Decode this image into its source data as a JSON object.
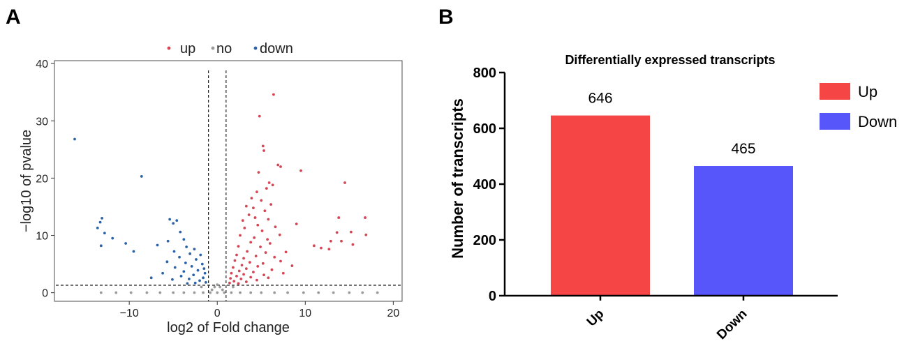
{
  "panels": {
    "a_label": "A",
    "b_label": "B"
  },
  "chart_data": [
    {
      "type": "scatter",
      "panel": "A",
      "title": "",
      "xlabel": "log2 of Fold change",
      "ylabel": "−log10 of pvalue",
      "xlim": [
        -18.5,
        21
      ],
      "ylim": [
        -1.5,
        40.5
      ],
      "xticks": [
        -10,
        0,
        10,
        20
      ],
      "xtick_labels": [
        "−10",
        "0",
        "10",
        "20"
      ],
      "yticks": [
        0,
        10,
        20,
        30,
        40
      ],
      "ytick_labels": [
        "0",
        "10",
        "20",
        "30",
        "40"
      ],
      "legend": {
        "placement": "top",
        "entries": [
          {
            "name": "up",
            "color": "#d64554"
          },
          {
            "name": "no",
            "color": "#9a9a9a"
          },
          {
            "name": "down",
            "color": "#2c62a8"
          }
        ]
      },
      "thresholds": {
        "fold_change_lines": [
          -1,
          1
        ],
        "pvalue_line": 1.3
      },
      "grid": false,
      "series": [
        {
          "name": "up",
          "color": "#d64554",
          "points": [
            [
              6.4,
              34.6
            ],
            [
              4.8,
              30.8
            ],
            [
              5.2,
              25.6
            ],
            [
              5.3,
              24.8
            ],
            [
              6.9,
              22.3
            ],
            [
              7.2,
              22.0
            ],
            [
              9.5,
              21.3
            ],
            [
              4.7,
              21.0
            ],
            [
              14.5,
              19.2
            ],
            [
              5.9,
              19.2
            ],
            [
              6.3,
              18.8
            ],
            [
              5.6,
              18.2
            ],
            [
              4.5,
              17.6
            ],
            [
              3.9,
              16.5
            ],
            [
              5.0,
              16.1
            ],
            [
              6.1,
              15.4
            ],
            [
              3.3,
              15.1
            ],
            [
              4.1,
              14.8
            ],
            [
              5.4,
              14.3
            ],
            [
              3.6,
              13.6
            ],
            [
              4.3,
              13.1
            ],
            [
              5.8,
              12.8
            ],
            [
              2.9,
              12.6
            ],
            [
              13.8,
              13.1
            ],
            [
              16.8,
              13.1
            ],
            [
              9.0,
              12.0
            ],
            [
              4.6,
              11.8
            ],
            [
              6.6,
              11.5
            ],
            [
              3.1,
              11.3
            ],
            [
              5.1,
              10.8
            ],
            [
              13.6,
              10.5
            ],
            [
              15.2,
              10.6
            ],
            [
              16.9,
              10.1
            ],
            [
              7.1,
              10.1
            ],
            [
              2.6,
              10.0
            ],
            [
              4.2,
              9.6
            ],
            [
              5.7,
              9.3
            ],
            [
              12.9,
              9.0
            ],
            [
              14.1,
              9.0
            ],
            [
              3.8,
              8.8
            ],
            [
              6.0,
              8.6
            ],
            [
              11.0,
              8.2
            ],
            [
              15.4,
              8.4
            ],
            [
              2.4,
              8.1
            ],
            [
              4.9,
              8.0
            ],
            [
              11.8,
              7.8
            ],
            [
              12.7,
              7.6
            ],
            [
              7.8,
              7.1
            ],
            [
              3.4,
              7.2
            ],
            [
              5.5,
              7.0
            ],
            [
              2.2,
              6.6
            ],
            [
              4.4,
              6.4
            ],
            [
              6.5,
              6.2
            ],
            [
              3.0,
              6.0
            ],
            [
              7.2,
              5.5
            ],
            [
              2.0,
              5.6
            ],
            [
              3.7,
              5.3
            ],
            [
              5.2,
              5.1
            ],
            [
              2.8,
              4.8
            ],
            [
              4.6,
              4.6
            ],
            [
              1.8,
              4.4
            ],
            [
              8.5,
              4.7
            ],
            [
              3.3,
              4.2
            ],
            [
              6.2,
              4.0
            ],
            [
              2.5,
              3.8
            ],
            [
              4.1,
              3.6
            ],
            [
              1.6,
              3.4
            ],
            [
              3.0,
              3.2
            ],
            [
              5.3,
              3.1
            ],
            [
              2.2,
              2.9
            ],
            [
              3.8,
              2.7
            ],
            [
              1.5,
              2.5
            ],
            [
              2.7,
              2.4
            ],
            [
              4.5,
              2.2
            ],
            [
              1.9,
              2.0
            ],
            [
              3.3,
              1.9
            ],
            [
              1.4,
              1.7
            ],
            [
              2.4,
              1.6
            ],
            [
              5.8,
              2.6
            ],
            [
              7.5,
              3.4
            ]
          ]
        },
        {
          "name": "no",
          "color": "#9a9a9a",
          "points": [
            [
              -13.2,
              0
            ],
            [
              -11.5,
              0
            ],
            [
              -9.8,
              0
            ],
            [
              -8.0,
              0
            ],
            [
              -6.5,
              0
            ],
            [
              -5.0,
              0
            ],
            [
              -3.8,
              0
            ],
            [
              -2.6,
              0
            ],
            [
              -1.6,
              0
            ],
            [
              -0.8,
              0
            ],
            [
              0,
              0
            ],
            [
              0.8,
              0
            ],
            [
              1.6,
              0
            ],
            [
              2.6,
              0
            ],
            [
              3.8,
              0
            ],
            [
              5.0,
              0
            ],
            [
              6.5,
              0
            ],
            [
              8.0,
              0
            ],
            [
              9.8,
              0
            ],
            [
              11.5,
              0
            ],
            [
              13.2,
              0
            ],
            [
              15.0,
              0
            ],
            [
              16.5,
              0
            ],
            [
              18.2,
              0
            ],
            [
              -0.6,
              0.5
            ],
            [
              0.6,
              0.5
            ],
            [
              -0.3,
              1.0
            ],
            [
              0.3,
              1.0
            ],
            [
              0,
              1.4
            ],
            [
              -1.8,
              1.0
            ],
            [
              1.8,
              1.0
            ]
          ]
        },
        {
          "name": "down",
          "color": "#2c62a8",
          "points": [
            [
              -16.2,
              26.8
            ],
            [
              -8.6,
              20.3
            ],
            [
              -13.1,
              13.0
            ],
            [
              -13.3,
              12.3
            ],
            [
              -5.4,
              12.8
            ],
            [
              -4.6,
              12.6
            ],
            [
              -5.0,
              12.1
            ],
            [
              -13.6,
              11.3
            ],
            [
              -12.8,
              10.4
            ],
            [
              -4.2,
              10.6
            ],
            [
              -11.9,
              9.5
            ],
            [
              -3.8,
              9.3
            ],
            [
              -13.2,
              8.2
            ],
            [
              -10.4,
              8.6
            ],
            [
              -9.5,
              7.2
            ],
            [
              -6.8,
              8.3
            ],
            [
              -5.6,
              9.0
            ],
            [
              -3.5,
              8.0
            ],
            [
              -2.6,
              7.6
            ],
            [
              -4.9,
              7.2
            ],
            [
              -3.1,
              6.8
            ],
            [
              -1.9,
              6.6
            ],
            [
              -4.3,
              6.2
            ],
            [
              -2.4,
              5.8
            ],
            [
              -5.7,
              5.4
            ],
            [
              -3.6,
              5.2
            ],
            [
              -1.7,
              5.0
            ],
            [
              -2.9,
              4.6
            ],
            [
              -4.8,
              4.4
            ],
            [
              -1.5,
              4.2
            ],
            [
              -2.2,
              3.9
            ],
            [
              -3.8,
              3.7
            ],
            [
              -1.4,
              3.4
            ],
            [
              -2.7,
              3.1
            ],
            [
              -4.1,
              2.9
            ],
            [
              -1.6,
              2.6
            ],
            [
              -3.2,
              2.4
            ],
            [
              -2.0,
              2.1
            ],
            [
              -1.3,
              1.8
            ],
            [
              -2.5,
              1.7
            ],
            [
              -6.2,
              3.4
            ],
            [
              -5.1,
              2.3
            ],
            [
              -7.5,
              2.6
            ],
            [
              -3.4,
              1.6
            ]
          ]
        }
      ]
    },
    {
      "type": "bar",
      "panel": "B",
      "title": "Differentially expressed transcripts",
      "xlabel": "",
      "ylabel": "Number of transcripts",
      "categories": [
        "Up",
        "Down"
      ],
      "values": [
        646,
        465
      ],
      "data_labels": [
        "646",
        "465"
      ],
      "colors": [
        "#f64545",
        "#5656fb"
      ],
      "ylim": [
        0,
        800
      ],
      "yticks": [
        0,
        200,
        400,
        600,
        800
      ],
      "ytick_labels": [
        "0",
        "200",
        "400",
        "600",
        "800"
      ],
      "legend": {
        "placement": "right",
        "entries": [
          {
            "name": "Up",
            "color": "#f64545"
          },
          {
            "name": "Down",
            "color": "#5656fb"
          }
        ]
      },
      "grid": false
    }
  ]
}
